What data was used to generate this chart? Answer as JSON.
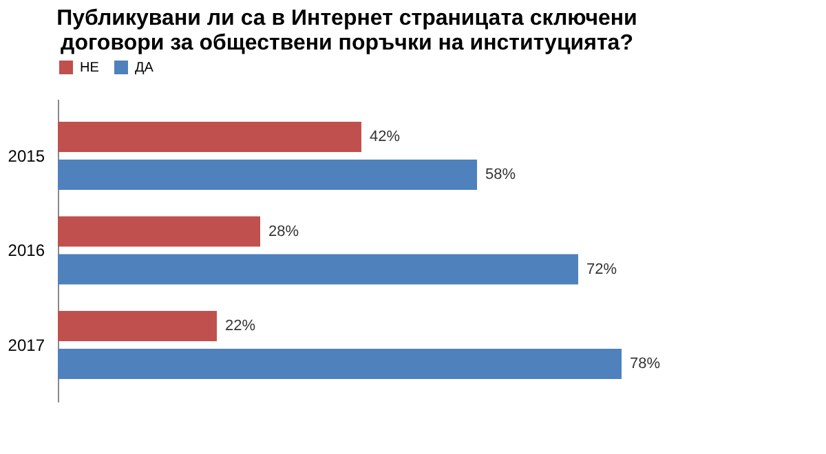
{
  "chart_data": {
    "type": "bar",
    "orientation": "horizontal",
    "title": "Публикувани ли са в Интернет страницата сключени договори за обществени поръчки на институцията?",
    "categories": [
      "2015",
      "2016",
      "2017"
    ],
    "series": [
      {
        "name": "НЕ",
        "color": "#c0504d",
        "values": [
          42,
          28,
          22
        ],
        "value_labels": [
          "42%",
          "28%",
          "22%"
        ]
      },
      {
        "name": "ДА",
        "color": "#4f81bd",
        "values": [
          58,
          72,
          78
        ],
        "value_labels": [
          "58%",
          "72%",
          "78%"
        ]
      }
    ],
    "legend": "top",
    "grid": false
  }
}
